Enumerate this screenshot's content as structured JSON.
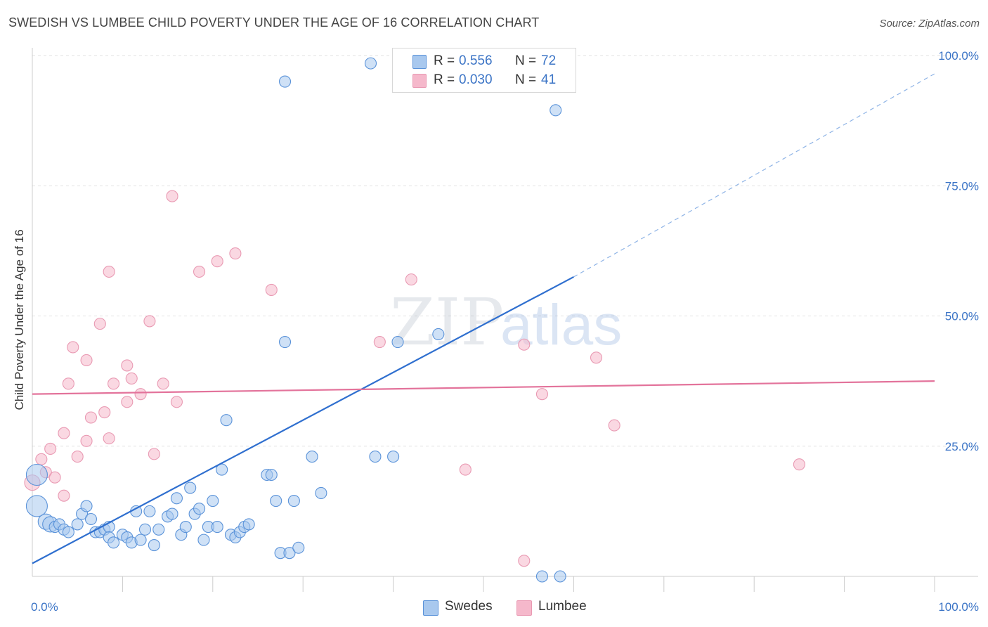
{
  "title": "SWEDISH VS LUMBEE CHILD POVERTY UNDER THE AGE OF 16 CORRELATION CHART",
  "source": "Source: ZipAtlas.com",
  "watermark": {
    "part1": "ZIP",
    "part2": "atlas"
  },
  "legend": {
    "r_label": "R =",
    "n_label": "N =",
    "swedes": {
      "r": "0.556",
      "n": "72",
      "color": "#a8c8ee"
    },
    "lumbee": {
      "r": "0.030",
      "n": "41",
      "color": "#f5b8cb"
    }
  },
  "bottom_legend": {
    "swedes": "Swedes",
    "lumbee": "Lumbee"
  },
  "chart_data": {
    "type": "scatter",
    "title": "SWEDISH VS LUMBEE CHILD POVERTY UNDER THE AGE OF 16 CORRELATION CHART",
    "xlabel": "",
    "ylabel": "Child Poverty Under the Age of 16",
    "xlim": [
      0,
      100
    ],
    "ylim": [
      0,
      100
    ],
    "x_tick_labels": [
      "0.0%",
      "100.0%"
    ],
    "y_tick_labels": [
      "25.0%",
      "50.0%",
      "75.0%",
      "100.0%"
    ],
    "y_ticks": [
      25,
      50,
      75,
      100
    ],
    "grid": true,
    "legend_position": "top-center",
    "series": [
      {
        "name": "Swedes",
        "color": "#5b93d9",
        "fill": "#a8c8ee",
        "trend": {
          "x0": 0,
          "y0": 2.5,
          "x1": 60,
          "y1": 57.5,
          "x_end": 100,
          "y_end": 96.5,
          "color": "#2f6fcf"
        },
        "points": [
          [
            0.5,
            19.5,
            3
          ],
          [
            0.5,
            13.5,
            3
          ],
          [
            1.5,
            10.5,
            2
          ],
          [
            2,
            10,
            2
          ],
          [
            2.5,
            9.5,
            1
          ],
          [
            3,
            10,
            1
          ],
          [
            3.5,
            9,
            1
          ],
          [
            4,
            8.5,
            1
          ],
          [
            5,
            10,
            1
          ],
          [
            5.5,
            12,
            1
          ],
          [
            6,
            13.5,
            1
          ],
          [
            6.5,
            11,
            1
          ],
          [
            7,
            8.5,
            1
          ],
          [
            7.5,
            8.5,
            1
          ],
          [
            8,
            9,
            1
          ],
          [
            8.5,
            9.5,
            1
          ],
          [
            8.5,
            7.5,
            1
          ],
          [
            9,
            6.5,
            1
          ],
          [
            10,
            8,
            1
          ],
          [
            10.5,
            7.5,
            1
          ],
          [
            11,
            6.5,
            1
          ],
          [
            11.5,
            12.5,
            1
          ],
          [
            12,
            7,
            1
          ],
          [
            12.5,
            9,
            1
          ],
          [
            13,
            12.5,
            1
          ],
          [
            13.5,
            6,
            1
          ],
          [
            14,
            9,
            1
          ],
          [
            15,
            11.5,
            1
          ],
          [
            15.5,
            12,
            1
          ],
          [
            16,
            15,
            1
          ],
          [
            16.5,
            8,
            1
          ],
          [
            17,
            9.5,
            1
          ],
          [
            17.5,
            17,
            1
          ],
          [
            18,
            12,
            1
          ],
          [
            18.5,
            13,
            1
          ],
          [
            19,
            7,
            1
          ],
          [
            19.5,
            9.5,
            1
          ],
          [
            20,
            14.5,
            1
          ],
          [
            20.5,
            9.5,
            1
          ],
          [
            21,
            20.5,
            1
          ],
          [
            21.5,
            30,
            1
          ],
          [
            22,
            8,
            1
          ],
          [
            22.5,
            7.5,
            1
          ],
          [
            23,
            8.5,
            1
          ],
          [
            23.5,
            9.5,
            1
          ],
          [
            24,
            10,
            1
          ],
          [
            26,
            19.5,
            1
          ],
          [
            26.5,
            19.5,
            1
          ],
          [
            27,
            14.5,
            1
          ],
          [
            27.5,
            4.5,
            1
          ],
          [
            28.5,
            4.5,
            1
          ],
          [
            28,
            45,
            1
          ],
          [
            29,
            14.5,
            1
          ],
          [
            29.5,
            5.5,
            1
          ],
          [
            31,
            23,
            1
          ],
          [
            32,
            16,
            1
          ],
          [
            28,
            95,
            1
          ],
          [
            37.5,
            98.5,
            1
          ],
          [
            38,
            23,
            1
          ],
          [
            40,
            23,
            1
          ],
          [
            40.5,
            45,
            1
          ],
          [
            43,
            98.5,
            1
          ],
          [
            45,
            46.5,
            1
          ],
          [
            54,
            98.5,
            1
          ],
          [
            56.5,
            0,
            1
          ],
          [
            58.5,
            0,
            1
          ],
          [
            58,
            89.5,
            1
          ]
        ]
      },
      {
        "name": "Lumbee",
        "color": "#e99ab3",
        "fill": "#f5b8cb",
        "trend": {
          "x0": 0,
          "y0": 35,
          "x1": 100,
          "y1": 37.5,
          "color": "#e3739b"
        },
        "points": [
          [
            0,
            18,
            2
          ],
          [
            1,
            22.5,
            1
          ],
          [
            1.5,
            20,
            1
          ],
          [
            2,
            24.5,
            1
          ],
          [
            2.5,
            19,
            1
          ],
          [
            3.5,
            15.5,
            1
          ],
          [
            3.5,
            27.5,
            1
          ],
          [
            4,
            37,
            1
          ],
          [
            4.5,
            44,
            1
          ],
          [
            5,
            23,
            1
          ],
          [
            6,
            41.5,
            1
          ],
          [
            6,
            26,
            1
          ],
          [
            6.5,
            30.5,
            1
          ],
          [
            7.5,
            48.5,
            1
          ],
          [
            8,
            31.5,
            1
          ],
          [
            8.5,
            26.5,
            1
          ],
          [
            8.5,
            58.5,
            1
          ],
          [
            9,
            37,
            1
          ],
          [
            10.5,
            33.5,
            1
          ],
          [
            10.5,
            40.5,
            1
          ],
          [
            11,
            38,
            1
          ],
          [
            12,
            35,
            1
          ],
          [
            13,
            49,
            1
          ],
          [
            13.5,
            23.5,
            1
          ],
          [
            14.5,
            37,
            1
          ],
          [
            15.5,
            73,
            1
          ],
          [
            16,
            33.5,
            1
          ],
          [
            18.5,
            58.5,
            1
          ],
          [
            20.5,
            60.5,
            1
          ],
          [
            22.5,
            62,
            1
          ],
          [
            26.5,
            55,
            1
          ],
          [
            38.5,
            45,
            1
          ],
          [
            42,
            57,
            1
          ],
          [
            48,
            20.5,
            1
          ],
          [
            54.5,
            3,
            1
          ],
          [
            54.5,
            44.5,
            1
          ],
          [
            56.5,
            35,
            1
          ],
          [
            62.5,
            42,
            1
          ],
          [
            64.5,
            29,
            1
          ],
          [
            85,
            21.5,
            1
          ]
        ]
      }
    ]
  }
}
